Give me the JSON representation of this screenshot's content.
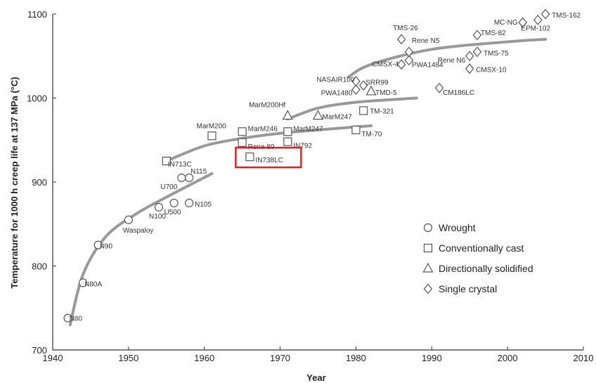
{
  "chart_data": {
    "type": "scatter",
    "title": "",
    "xlabel": "Year",
    "ylabel": "Temperature for 1000 h creep life at 137 MPa (°C)",
    "xlim": [
      1940,
      2010
    ],
    "ylim": [
      700,
      1100
    ],
    "x_ticks": [
      "1940",
      "1950",
      "1960",
      "1970",
      "1980",
      "1990",
      "2000",
      "2010"
    ],
    "y_ticks": [
      "700",
      "800",
      "900",
      "1000",
      "1100"
    ],
    "grid": false,
    "legend_position": "bottom-right",
    "legend": [
      {
        "key": "wrought",
        "label": "Wrought"
      },
      {
        "key": "cast",
        "label": "Conventionally cast"
      },
      {
        "key": "ds",
        "label": "Directionally solidified"
      },
      {
        "key": "sx",
        "label": "Single crystal"
      }
    ],
    "series": [
      {
        "key": "wrought",
        "marker": "circle",
        "points": [
          {
            "label": "N80",
            "x": 1942,
            "y": 738
          },
          {
            "label": "N80A",
            "x": 1944,
            "y": 780
          },
          {
            "label": "N90",
            "x": 1946,
            "y": 825
          },
          {
            "label": "Waspaloy",
            "x": 1950,
            "y": 855
          },
          {
            "label": "N100",
            "x": 1954,
            "y": 870
          },
          {
            "label": "U500",
            "x": 1956,
            "y": 875
          },
          {
            "label": "U700",
            "x": 1957,
            "y": 905
          },
          {
            "label": "N115",
            "x": 1958,
            "y": 905
          },
          {
            "label": "N105",
            "x": 1958,
            "y": 875
          }
        ]
      },
      {
        "key": "cast",
        "marker": "square",
        "points": [
          {
            "label": "IN713C",
            "x": 1955,
            "y": 925
          },
          {
            "label": "MarM200",
            "x": 1961,
            "y": 955
          },
          {
            "label": "MarM246",
            "x": 1965,
            "y": 960
          },
          {
            "label": "Rene 80",
            "x": 1965,
            "y": 947
          },
          {
            "label": "IN738LC",
            "x": 1966,
            "y": 930
          },
          {
            "label": "MarM247",
            "x": 1971,
            "y": 960
          },
          {
            "label": "IN792",
            "x": 1971,
            "y": 948
          },
          {
            "label": "TM-70",
            "x": 1980,
            "y": 962
          },
          {
            "label": "TM-321",
            "x": 1981,
            "y": 985
          }
        ]
      },
      {
        "key": "ds",
        "marker": "triangle",
        "points": [
          {
            "label": "MarM200Hf",
            "x": 1971,
            "y": 979
          },
          {
            "label": "MarM247",
            "x": 1975,
            "y": 979
          },
          {
            "label": "TMD-5",
            "x": 1982,
            "y": 1008
          }
        ]
      },
      {
        "key": "sx",
        "marker": "diamond",
        "points": [
          {
            "label": "PWA1480",
            "x": 1980,
            "y": 1010
          },
          {
            "label": "NASAIR100",
            "x": 1980,
            "y": 1020
          },
          {
            "label": "SRR99",
            "x": 1981,
            "y": 1015
          },
          {
            "label": "CMSX-4",
            "x": 1986,
            "y": 1040
          },
          {
            "label": "PWA1484",
            "x": 1987,
            "y": 1045
          },
          {
            "label": "Rene N5",
            "x": 1987,
            "y": 1055
          },
          {
            "label": "TMS-26",
            "x": 1986,
            "y": 1070
          },
          {
            "label": "CM186LC",
            "x": 1991,
            "y": 1012
          },
          {
            "label": "CMSX-10",
            "x": 1995,
            "y": 1035
          },
          {
            "label": "Rene N6",
            "x": 1995,
            "y": 1050
          },
          {
            "label": "TMS-75",
            "x": 1996,
            "y": 1055
          },
          {
            "label": "TMS-82",
            "x": 1996,
            "y": 1075
          },
          {
            "label": "MC-NG",
            "x": 2002,
            "y": 1090
          },
          {
            "label": "EPM-102",
            "x": 2004,
            "y": 1093
          },
          {
            "label": "TMS-162",
            "x": 2005,
            "y": 1100
          }
        ]
      }
    ],
    "trend_lines": [
      [
        [
          1942.3,
          730
        ],
        [
          1944,
          790
        ],
        [
          1947,
          835
        ],
        [
          1951,
          862
        ],
        [
          1955,
          882
        ],
        [
          1961,
          910
        ]
      ],
      [
        [
          1955,
          925
        ],
        [
          1960,
          943
        ],
        [
          1965,
          952
        ],
        [
          1970,
          958
        ],
        [
          1975,
          962
        ],
        [
          1982,
          967
        ]
      ],
      [
        [
          1971,
          975
        ],
        [
          1975,
          988
        ],
        [
          1980,
          995
        ],
        [
          1988,
          1000
        ]
      ],
      [
        [
          1979,
          1025
        ],
        [
          1982,
          1040
        ],
        [
          1990,
          1058
        ],
        [
          2000,
          1067
        ],
        [
          2005,
          1070
        ]
      ]
    ],
    "highlight": {
      "label": "IN738LC",
      "color": "#e02020"
    }
  }
}
